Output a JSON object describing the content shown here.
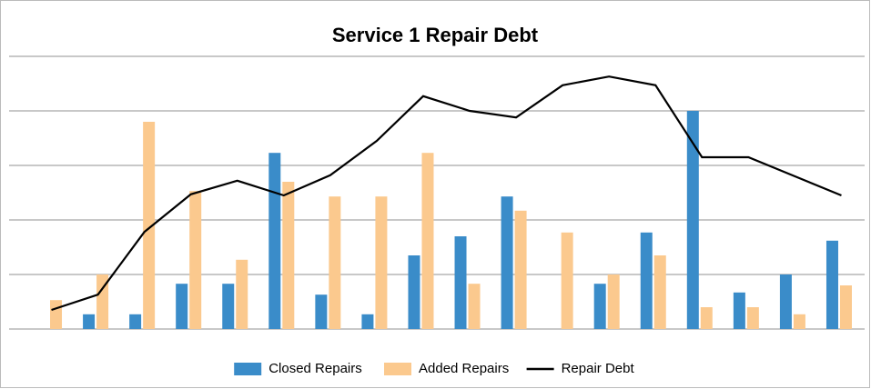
{
  "chart_data": {
    "type": "bar-line",
    "title": "Service 1 Repair Debt",
    "categories": [
      null,
      null,
      null,
      null,
      null,
      null,
      null,
      null,
      null,
      null,
      null,
      null,
      null,
      null,
      null,
      null,
      null,
      null
    ],
    "series": [
      {
        "name": "Closed Repairs",
        "type": "bar",
        "color": "#3a8cc9",
        "values": [
          0,
          0.27,
          0.27,
          0.83,
          0.83,
          3.23,
          0.63,
          0.27,
          1.35,
          1.7,
          2.43,
          0,
          0.83,
          1.77,
          4.0,
          0.67,
          1.0,
          1.62
        ]
      },
      {
        "name": "Added Repairs",
        "type": "bar",
        "color": "#fbc98e",
        "values": [
          0.53,
          1.0,
          3.8,
          2.53,
          1.27,
          2.7,
          2.43,
          2.43,
          3.23,
          0.83,
          2.17,
          1.77,
          1.0,
          1.35,
          0.4,
          0.4,
          0.27,
          0.8
        ]
      },
      {
        "name": "Repair Debt",
        "type": "line",
        "color": "#000000",
        "values": [
          0.35,
          0.63,
          1.78,
          2.47,
          2.72,
          2.45,
          2.82,
          3.45,
          4.27,
          4.0,
          3.88,
          4.47,
          4.63,
          4.47,
          3.15,
          3.15,
          2.8,
          2.45
        ]
      }
    ],
    "ylim": [
      0,
      5
    ],
    "yticks": [
      0,
      1,
      2,
      3,
      4,
      5
    ],
    "grid": true,
    "legend": "bottom"
  }
}
